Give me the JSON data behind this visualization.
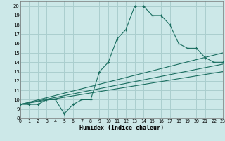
{
  "xlabel": "Humidex (Indice chaleur)",
  "background_color": "#cce8e8",
  "grid_color": "#aacece",
  "line_color": "#1a6e60",
  "xlim": [
    0,
    23
  ],
  "ylim": [
    8,
    20.5
  ],
  "xticks": [
    0,
    1,
    2,
    3,
    4,
    5,
    6,
    7,
    8,
    9,
    10,
    11,
    12,
    13,
    14,
    15,
    16,
    17,
    18,
    19,
    20,
    21,
    22,
    23
  ],
  "yticks": [
    8,
    9,
    10,
    11,
    12,
    13,
    14,
    15,
    16,
    17,
    18,
    19,
    20
  ],
  "main_x": [
    0,
    1,
    2,
    3,
    4,
    5,
    6,
    7,
    8,
    9,
    10,
    11,
    12,
    13,
    14,
    15,
    16,
    17,
    18,
    19,
    20,
    21,
    22,
    23
  ],
  "main_y": [
    9.5,
    9.5,
    9.5,
    10.0,
    10.0,
    8.5,
    9.5,
    10.0,
    10.0,
    13.0,
    14.0,
    16.5,
    17.5,
    20.0,
    20.0,
    19.0,
    19.0,
    18.0,
    16.0,
    15.5,
    15.5,
    14.5,
    14.0,
    14.0
  ],
  "line2_x": [
    0,
    23
  ],
  "line2_y": [
    9.5,
    15.0
  ],
  "line3_x": [
    0,
    23
  ],
  "line3_y": [
    9.5,
    13.8
  ],
  "line4_x": [
    0,
    23
  ],
  "line4_y": [
    9.5,
    13.0
  ]
}
